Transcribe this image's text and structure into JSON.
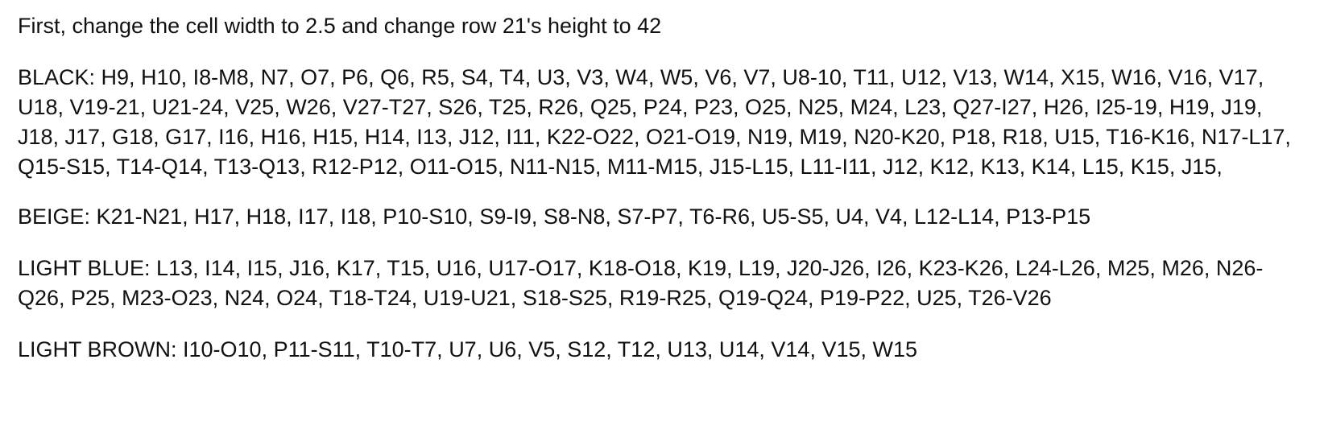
{
  "document": {
    "intro": "First, change the cell width to 2.5 and change row 21's height to 42",
    "black": "BLACK: H9, H10, I8-M8, N7, O7, P6, Q6, R5, S4, T4, U3, V3, W4, W5, V6, V7, U8-10, T11, U12, V13, W14, X15, W16, V16, V17, U18, V19-21, U21-24, V25, W26, V27-T27, S26, T25, R26, Q25, P24, P23, O25, N25,  M24, L23, Q27-I27, H26, I25-19, H19, J19, J18, J17, G18, G17, I16, H16, H15, H14, I13, J12, I11, K22-O22, O21-O19, N19, M19, N20-K20, P18, R18, U15, T16-K16, N17-L17, Q15-S15, T14-Q14, T13-Q13, R12-P12, O11-O15, N11-N15, M11-M15, J15-L15, L11-I11, J12, K12, K13, K14, L15, K15, J15,",
    "beige": "BEIGE:  K21-N21, H17, H18, I17, I18, P10-S10, S9-I9, S8-N8, S7-P7, T6-R6,  U5-S5,  U4, V4,  L12-L14, P13-P15",
    "light_blue": "LIGHT BLUE: L13, I14, I15, J16, K17, T15, U16, U17-O17, K18-O18, K19, L19, J20-J26, I26, K23-K26, L24-L26, M25, M26, N26-Q26, P25, M23-O23, N24, O24, T18-T24, U19-U21, S18-S25, R19-R25, Q19-Q24, P19-P22, U25, T26-V26",
    "light_brown": "LIGHT BROWN: I10-O10, P11-S11, T10-T7, U7, U6, V5, S12, T12, U13, U14, V14, V15, W15"
  }
}
